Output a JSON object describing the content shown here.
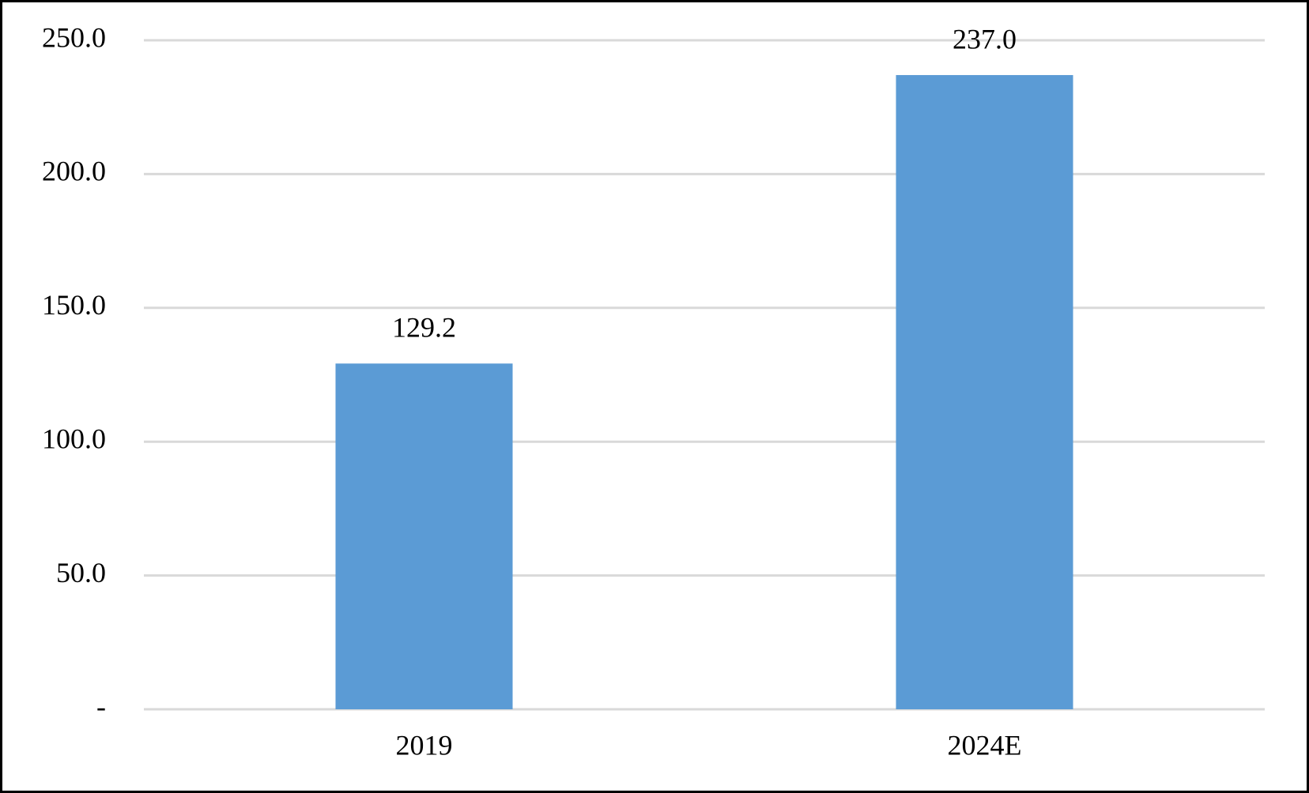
{
  "chart_data": {
    "type": "bar",
    "categories": [
      "2019",
      "2024E"
    ],
    "values": [
      129.2,
      237.0
    ],
    "value_labels": [
      "129.2",
      "237.0"
    ],
    "color": "#5b9bd5",
    "ylim": [
      0,
      250
    ],
    "yticks": [
      {
        "value": 0,
        "label": "-"
      },
      {
        "value": 50,
        "label": "50.0"
      },
      {
        "value": 100,
        "label": "100.0"
      },
      {
        "value": 150,
        "label": "150.0"
      },
      {
        "value": 200,
        "label": "200.0"
      },
      {
        "value": 250,
        "label": "250.0"
      }
    ],
    "grid": true
  }
}
